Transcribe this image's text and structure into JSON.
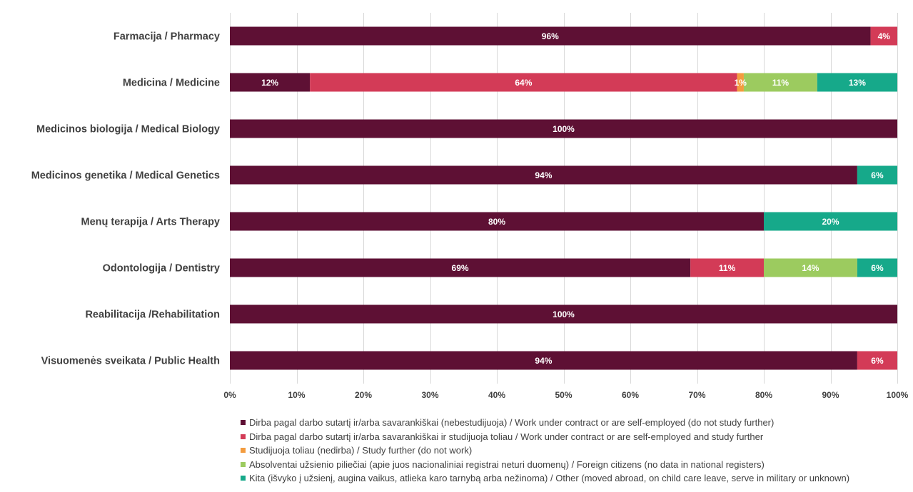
{
  "chart_data": {
    "type": "bar",
    "orientation": "horizontal",
    "stacked": "percent",
    "categories": [
      "Farmacija / Pharmacy",
      "Medicina / Medicine",
      "Medicinos biologija / Medical Biology",
      "Medicinos genetika / Medical Genetics",
      "Menų terapija / Arts Therapy ",
      "Odontologija / Dentistry",
      "Reabilitacija /Rehabilitation",
      "Visuomenės sveikata / Public Health"
    ],
    "series": [
      {
        "name": "Dirba pagal darbo sutartį ir/arba savarankiškai (nebestudijuoja) / Work under contract or are self-employed (do not study further)",
        "color": "#5e1034",
        "label_color": "#ffffff",
        "values": [
          96,
          12,
          100,
          94,
          80,
          69,
          100,
          94
        ],
        "labels": [
          "96%",
          "12%",
          "100%",
          "94%",
          "80%",
          "69%",
          "100%",
          "94%"
        ]
      },
      {
        "name": "Dirba pagal darbo sutartį ir/arba savarankiškai  ir studijuoja toliau / Work under contract or are self-employed and study further",
        "color": "#d33b57",
        "label_color": "#ffffff",
        "values": [
          4,
          64,
          0,
          0,
          0,
          11,
          0,
          6
        ],
        "labels": [
          "4%",
          "64%",
          "",
          "",
          "",
          "11%",
          "",
          "6%"
        ]
      },
      {
        "name": "Studijuoja toliau (nedirba) / Study further (do not work)",
        "color": "#f39c3f",
        "label_color": "#ffffff",
        "values": [
          0,
          1,
          0,
          0,
          0,
          0,
          0,
          0
        ],
        "labels": [
          "",
          "1%",
          "",
          "",
          "",
          "",
          "",
          ""
        ]
      },
      {
        "name": "Absolventai užsienio piliečiai (apie juos nacionaliniai registrai neturi duomenų) / Foreign citizens (no data in national registers)",
        "color": "#9ccb5f",
        "label_color": "#ffffff",
        "values": [
          0,
          11,
          0,
          0,
          0,
          14,
          0,
          0
        ],
        "labels": [
          "",
          "11%",
          "",
          "",
          "",
          "14%",
          "",
          ""
        ]
      },
      {
        "name": "Kita (išvyko į užsienį, augina vaikus, atlieka karo tarnybą arba nežinoma) / Other (moved abroad, on child care leave, serve in military or unknown)",
        "color": "#16a98a",
        "label_color": "#ffffff",
        "values": [
          0,
          13,
          0,
          6,
          20,
          6,
          0,
          0
        ],
        "labels": [
          "",
          "13%",
          "",
          "6%",
          "20%",
          "6%",
          "",
          ""
        ]
      }
    ],
    "x_ticks": [
      "0%",
      "10%",
      "20%",
      "30%",
      "40%",
      "50%",
      "60%",
      "70%",
      "80%",
      "90%",
      "100%"
    ],
    "xlim": [
      0,
      100
    ],
    "grid": true,
    "legend_position": "bottom"
  }
}
